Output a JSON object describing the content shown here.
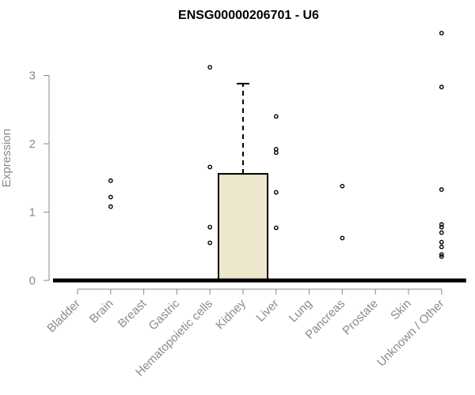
{
  "chart_data": {
    "type": "boxplot",
    "title": "ENSG00000206701 - U6",
    "ylabel": "Expression",
    "xlabel": "",
    "ylim": [
      0,
      3.6
    ],
    "yticks": [
      0,
      1,
      2,
      3
    ],
    "grid": false,
    "legend": "none",
    "box_fill": "#ece6cc",
    "categories": [
      "Bladder",
      "Brain",
      "Breast",
      "Gastric",
      "Hematopoietic cells",
      "Kidney",
      "Liver",
      "Lung",
      "Pancreas",
      "Prostate",
      "Skin",
      "Unknown / Other"
    ],
    "boxes": [
      {
        "category": "Bladder",
        "q1": 0,
        "median": 0,
        "q3": 0,
        "whisker_low": 0,
        "whisker_high": 0,
        "outliers": []
      },
      {
        "category": "Brain",
        "q1": 0,
        "median": 0,
        "q3": 0,
        "whisker_low": 0,
        "whisker_high": 0,
        "outliers": [
          1.46,
          1.22,
          1.08
        ]
      },
      {
        "category": "Breast",
        "q1": 0,
        "median": 0,
        "q3": 0,
        "whisker_low": 0,
        "whisker_high": 0,
        "outliers": []
      },
      {
        "category": "Gastric",
        "q1": 0,
        "median": 0,
        "q3": 0,
        "whisker_low": 0,
        "whisker_high": 0,
        "outliers": []
      },
      {
        "category": "Hematopoietic cells",
        "q1": 0,
        "median": 0,
        "q3": 0,
        "whisker_low": 0,
        "whisker_high": 0,
        "outliers": [
          3.12,
          1.66,
          0.78,
          0.55
        ]
      },
      {
        "category": "Kidney",
        "q1": 0,
        "median": 0,
        "q3": 1.56,
        "whisker_low": 0,
        "whisker_high": 2.88,
        "outliers": []
      },
      {
        "category": "Liver",
        "q1": 0,
        "median": 0,
        "q3": 0,
        "whisker_low": 0,
        "whisker_high": 0,
        "outliers": [
          2.4,
          1.92,
          1.87,
          1.29,
          0.77
        ]
      },
      {
        "category": "Lung",
        "q1": 0,
        "median": 0,
        "q3": 0,
        "whisker_low": 0,
        "whisker_high": 0,
        "outliers": []
      },
      {
        "category": "Pancreas",
        "q1": 0,
        "median": 0,
        "q3": 0,
        "whisker_low": 0,
        "whisker_high": 0,
        "outliers": [
          1.38,
          0.62
        ]
      },
      {
        "category": "Prostate",
        "q1": 0,
        "median": 0,
        "q3": 0,
        "whisker_low": 0,
        "whisker_high": 0,
        "outliers": []
      },
      {
        "category": "Skin",
        "q1": 0,
        "median": 0,
        "q3": 0,
        "whisker_low": 0,
        "whisker_high": 0,
        "outliers": []
      },
      {
        "category": "Unknown / Other",
        "q1": 0,
        "median": 0,
        "q3": 0,
        "whisker_low": 0,
        "whisker_high": 0,
        "outliers": [
          3.62,
          2.83,
          1.33,
          0.82,
          0.78,
          0.7,
          0.56,
          0.49,
          0.38,
          0.35
        ]
      }
    ]
  }
}
